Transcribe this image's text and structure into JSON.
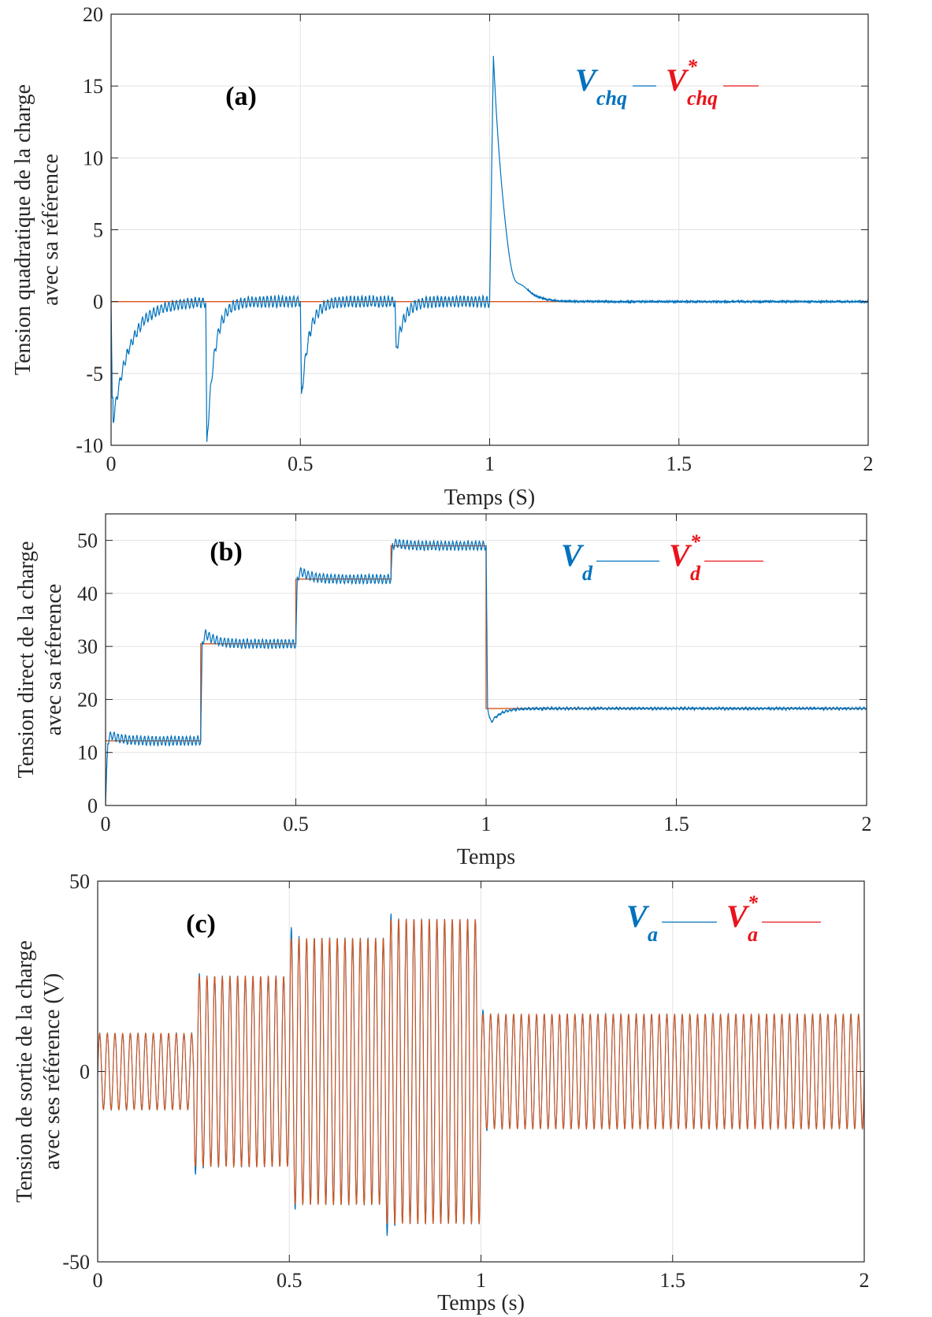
{
  "chart_data": [
    {
      "type": "line",
      "panel_label": "(a)",
      "xlabel": "Temps (S)",
      "ylabel_lines": [
        "Tension quadratique de la charge",
        "avec sa référence"
      ],
      "xlim": [
        0,
        2
      ],
      "ylim": [
        -10,
        20
      ],
      "xticks": [
        "0",
        "0.5",
        "1",
        "1.5",
        "2"
      ],
      "yticks": [
        "-10",
        "-5",
        "0",
        "5",
        "10",
        "15",
        "20"
      ],
      "grid": true,
      "legend": {
        "position": "top-right",
        "measured": {
          "base": "V",
          "sub": "chq",
          "sup": ""
        },
        "reference": {
          "base": "V",
          "sub": "chq",
          "sup": "*"
        }
      },
      "reference_steps": [
        [
          0,
          0
        ],
        [
          2,
          0
        ]
      ],
      "measured_events": [
        {
          "t": 0.0,
          "peak": -7,
          "recovery": 0.05
        },
        {
          "t": 0.25,
          "peak": -10,
          "recovery": 0.02
        },
        {
          "t": 0.5,
          "peak": -6.7,
          "recovery": 0.02
        },
        {
          "t": 0.75,
          "peak": -3.5,
          "recovery": 0.02
        },
        {
          "t": 1.0,
          "peak": 17.1,
          "recovery": 0.03
        }
      ],
      "colors": {
        "measured": "#0072BD",
        "reference": "#D95319"
      }
    },
    {
      "type": "line",
      "panel_label": "(b)",
      "xlabel": "Temps",
      "ylabel_lines": [
        "Tension direct de la charge",
        "avec sa réference"
      ],
      "xlim": [
        0,
        2
      ],
      "ylim": [
        0,
        55
      ],
      "xticks": [
        "0",
        "0.5",
        "1",
        "1.5",
        "2"
      ],
      "yticks": [
        "0",
        "10",
        "20",
        "30",
        "40",
        "50"
      ],
      "grid": true,
      "legend": {
        "position": "top-right",
        "measured": {
          "base": "V",
          "sub": "d",
          "sup": ""
        },
        "reference": {
          "base": "V",
          "sub": "d",
          "sup": "*"
        }
      },
      "reference_steps": [
        [
          0,
          12.2
        ],
        [
          0.25,
          30.5
        ],
        [
          0.5,
          42.7
        ],
        [
          0.75,
          49
        ],
        [
          1.0,
          18.3
        ],
        [
          2,
          18.3
        ]
      ],
      "measured_overshoots": [
        13.8,
        33.3,
        44.9,
        49.7,
        14.5
      ],
      "colors": {
        "measured": "#0072BD",
        "reference": "#D95319"
      }
    },
    {
      "type": "line",
      "panel_label": "(c)",
      "xlabel": "Temps (s)",
      "ylabel_lines": [
        "Tension de sortie de la charge",
        "avec ses référence (V)"
      ],
      "xlim": [
        0,
        2
      ],
      "ylim": [
        -50,
        50
      ],
      "xticks": [
        "0",
        "0.5",
        "1",
        "1.5",
        "2"
      ],
      "yticks": [
        "-50",
        "0",
        "50"
      ],
      "grid": true,
      "legend": {
        "position": "top-right",
        "measured": {
          "base": "V",
          "sub": "a",
          "sup": ""
        },
        "reference": {
          "base": "V",
          "sub": "a",
          "sup": "*"
        }
      },
      "frequency_hz": 50,
      "amplitude_steps": [
        [
          0,
          10
        ],
        [
          0.25,
          25
        ],
        [
          0.5,
          35
        ],
        [
          0.75,
          40
        ],
        [
          1.0,
          15
        ],
        [
          2,
          15
        ]
      ],
      "colors": {
        "measured": "#0072BD",
        "reference": "#D95319"
      }
    }
  ]
}
